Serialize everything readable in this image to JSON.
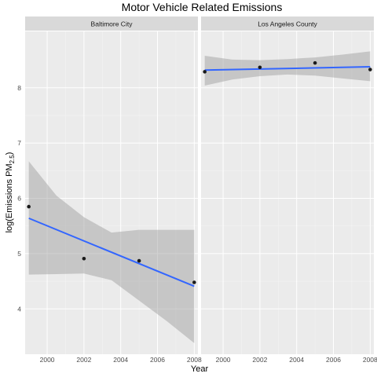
{
  "chart_data": {
    "type": "scatter",
    "title": "Motor Vehicle Related Emissions",
    "xlabel": "Year",
    "ylabel_main": "log(Emissions PM",
    "ylabel_sub": "2.5",
    "ylabel_close": ")",
    "x_ticks": [
      "2000",
      "2002",
      "2004",
      "2006",
      "2008"
    ],
    "y_ticks": [
      "4",
      "5",
      "6",
      "7",
      "8"
    ],
    "xlim": [
      1998.8,
      2008.2
    ],
    "ylim": [
      3.18,
      9.02
    ],
    "grid": true,
    "colors": {
      "panel": "#ebebeb",
      "strip": "#d9d9d9",
      "grid_major": "#ffffff",
      "point": "#1a1a1a",
      "fit": "#3366ff",
      "ribbon": "#999999"
    },
    "panels": [
      {
        "label": "Baltimore City",
        "points": [
          {
            "x": 1999,
            "y": 5.85
          },
          {
            "x": 2002,
            "y": 4.91
          },
          {
            "x": 2005,
            "y": 4.87
          },
          {
            "x": 2008,
            "y": 4.48
          }
        ],
        "fit": {
          "x": [
            1999,
            2008
          ],
          "y": [
            5.64,
            4.41
          ]
        },
        "ribbon": {
          "x": [
            1999,
            2000.5,
            2002,
            2003.5,
            2005,
            2006.5,
            2008
          ],
          "lower": [
            4.62,
            4.63,
            4.64,
            4.52,
            4.15,
            3.78,
            3.38
          ],
          "upper": [
            6.67,
            6.05,
            5.66,
            5.38,
            5.43,
            5.43,
            5.43
          ]
        }
      },
      {
        "label": "Los Angeles County",
        "points": [
          {
            "x": 1999,
            "y": 8.29
          },
          {
            "x": 2002,
            "y": 8.37
          },
          {
            "x": 2005,
            "y": 8.45
          },
          {
            "x": 2008,
            "y": 8.33
          }
        ],
        "fit": {
          "x": [
            1999,
            2008
          ],
          "y": [
            8.32,
            8.38
          ]
        },
        "ribbon": {
          "x": [
            1999,
            2000.5,
            2002,
            2003.5,
            2005,
            2006.5,
            2008
          ],
          "lower": [
            8.04,
            8.15,
            8.21,
            8.24,
            8.22,
            8.17,
            8.12
          ],
          "upper": [
            8.58,
            8.51,
            8.5,
            8.52,
            8.55,
            8.6,
            8.66
          ]
        }
      }
    ]
  }
}
